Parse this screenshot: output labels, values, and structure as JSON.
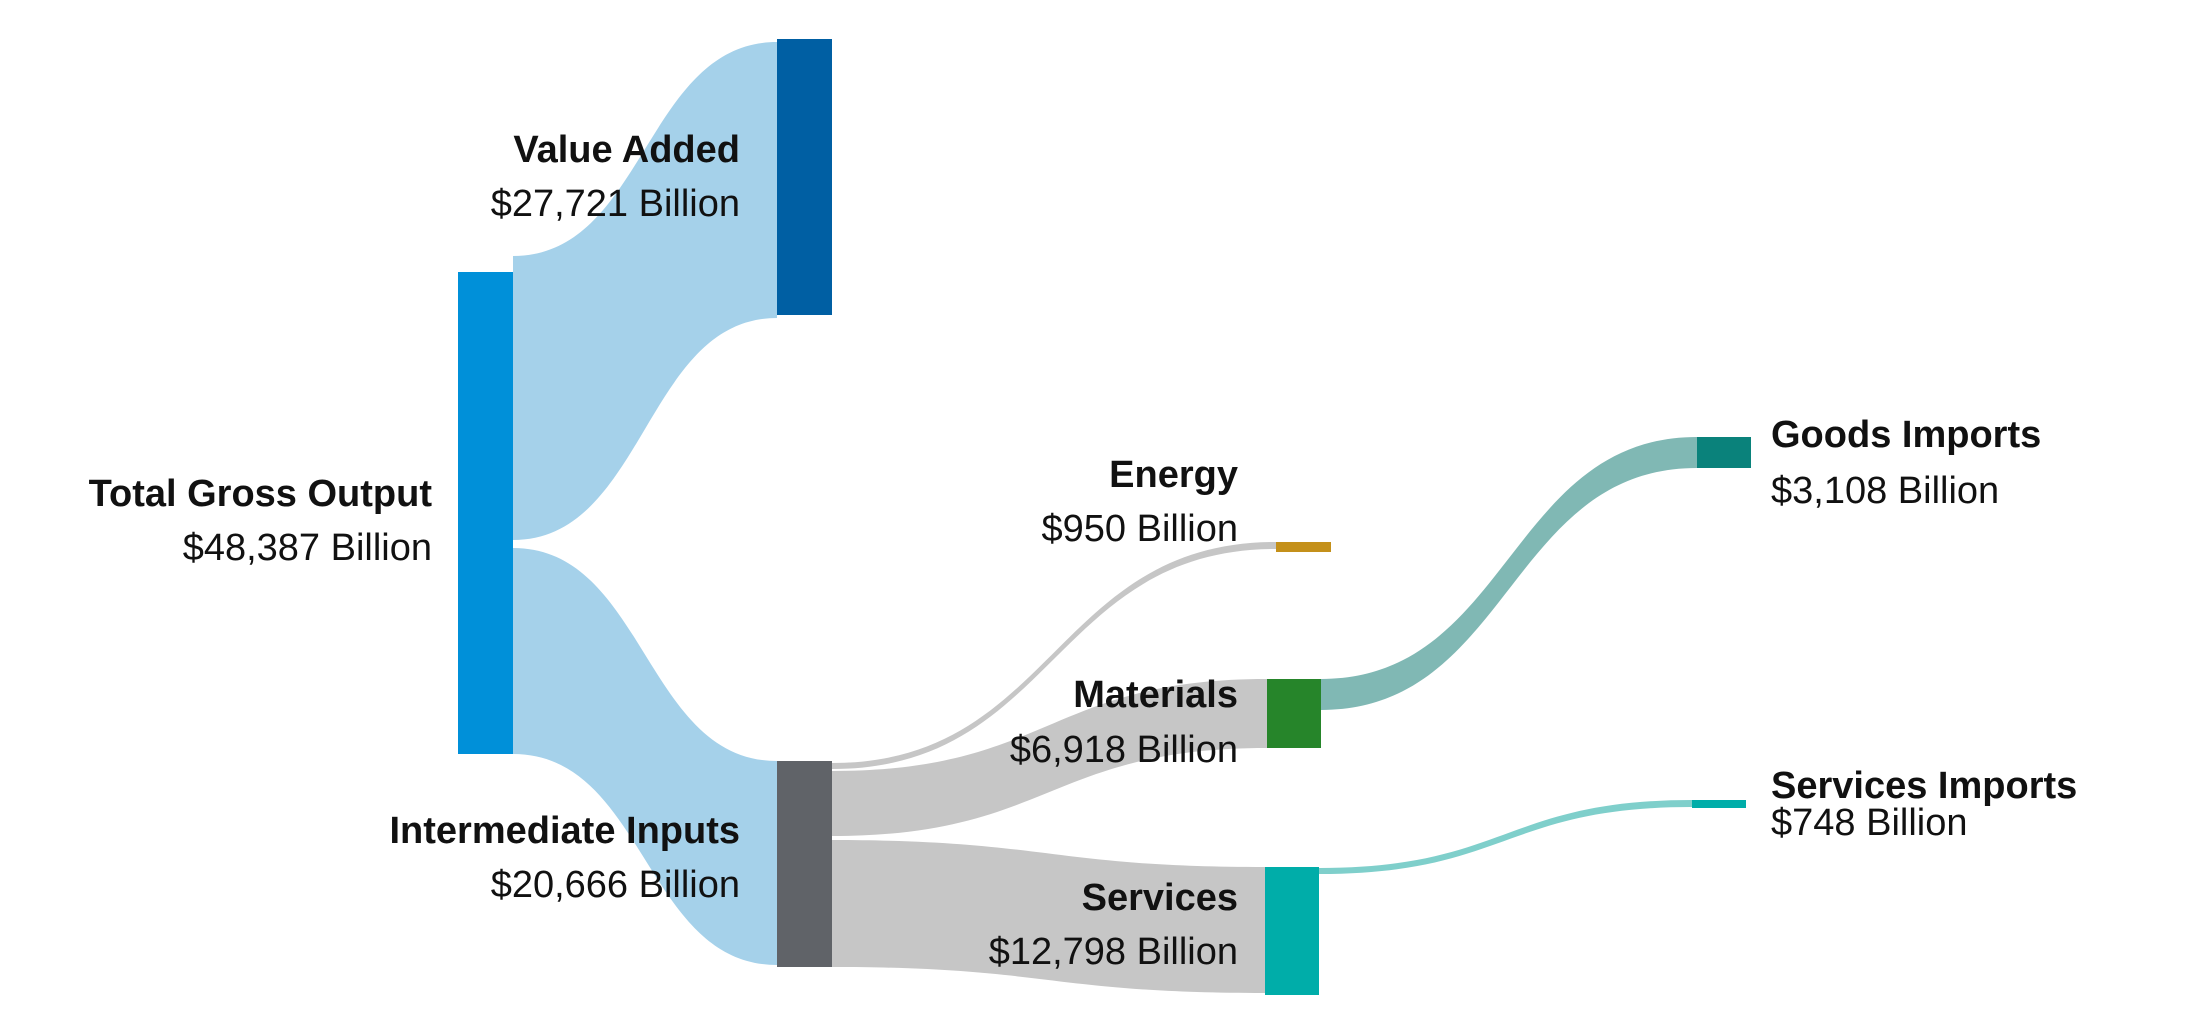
{
  "chart_data": {
    "type": "sankey",
    "title": "",
    "units": "Billion USD",
    "nodes": [
      {
        "id": "tgo",
        "name": "Total Gross Output",
        "amount": "$48,387 Billion",
        "value": 48387,
        "color": "#0090d9"
      },
      {
        "id": "va",
        "name": "Value Added",
        "amount": "$27,721 Billion",
        "value": 27721,
        "color": "#005fa3"
      },
      {
        "id": "ii",
        "name": "Intermediate Inputs",
        "amount": "$20,666 Billion",
        "value": 20666,
        "color": "#606368"
      },
      {
        "id": "energy",
        "name": "Energy",
        "amount": "$950 Billion",
        "value": 950,
        "color": "#c4901a"
      },
      {
        "id": "materials",
        "name": "Materials",
        "amount": "$6,918 Billion",
        "value": 6918,
        "color": "#26852a"
      },
      {
        "id": "services",
        "name": "Services",
        "amount": "$12,798 Billion",
        "value": 12798,
        "color": "#00ada9"
      },
      {
        "id": "goods_imports",
        "name": "Goods Imports",
        "amount": "$3,108 Billion",
        "value": 3108,
        "color": "#0a827b"
      },
      {
        "id": "services_imports",
        "name": "Services Imports",
        "amount": "$748 Billion",
        "value": 748,
        "color": "#00ada9"
      }
    ],
    "links": [
      {
        "source": "tgo",
        "target": "va",
        "value": 27721,
        "color": "#a5d1ea"
      },
      {
        "source": "tgo",
        "target": "ii",
        "value": 20666,
        "color": "#a5d1ea"
      },
      {
        "source": "ii",
        "target": "energy",
        "value": 950,
        "color": "#c6c6c6"
      },
      {
        "source": "ii",
        "target": "materials",
        "value": 6918,
        "color": "#c6c6c6"
      },
      {
        "source": "ii",
        "target": "services",
        "value": 12798,
        "color": "#c6c6c6"
      },
      {
        "source": "materials",
        "target": "goods_imports",
        "value": 3108,
        "color": "#80b8b4"
      },
      {
        "source": "services",
        "target": "services_imports",
        "value": 748,
        "color": "#7fcfcb"
      }
    ]
  }
}
